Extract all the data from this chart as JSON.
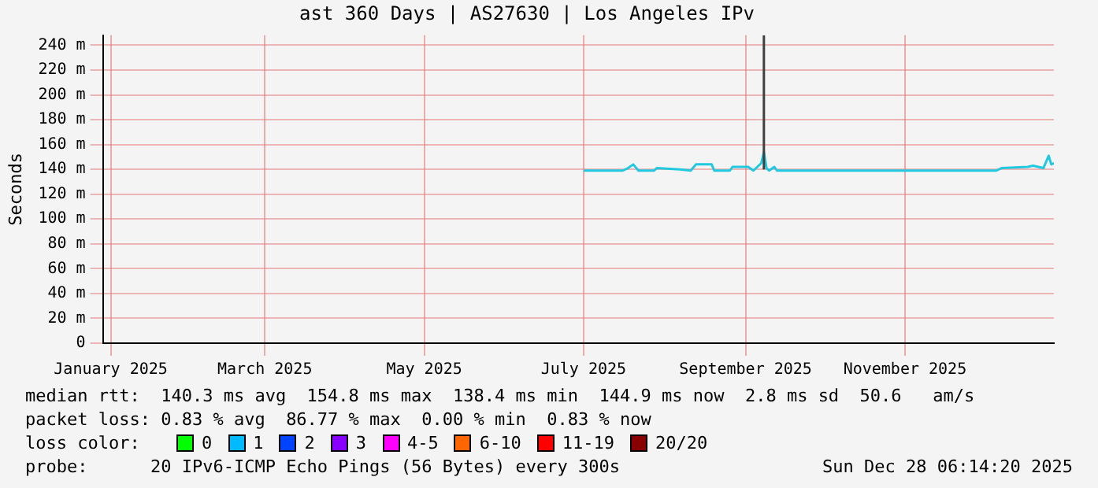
{
  "chart_data": {
    "type": "line",
    "title": "ast 360 Days | AS27630 | Los Angeles IPv",
    "ylabel": "Seconds",
    "grid": true,
    "legend": false,
    "marker": "none",
    "line_style": "solid",
    "xlim": [
      "2024-12-29",
      "2025-12-28"
    ],
    "xticks": [
      {
        "value": "2025-01-01",
        "label": "January 2025"
      },
      {
        "value": "2025-03-01",
        "label": "March 2025"
      },
      {
        "value": "2025-05-01",
        "label": "May 2025"
      },
      {
        "value": "2025-07-01",
        "label": "July 2025"
      },
      {
        "value": "2025-09-01",
        "label": "September 2025"
      },
      {
        "value": "2025-11-01",
        "label": "November 2025"
      }
    ],
    "ylim": [
      0,
      248
    ],
    "yticks": [
      0,
      {
        "value": 20,
        "label": "20 m"
      },
      {
        "value": 40,
        "label": "40 m"
      },
      {
        "value": 60,
        "label": "60 m"
      },
      {
        "value": 80,
        "label": "80 m"
      },
      {
        "value": 100,
        "label": "100 m"
      },
      {
        "value": 120,
        "label": "120 m"
      },
      {
        "value": 140,
        "label": "140 m"
      },
      {
        "value": 160,
        "label": "160 m"
      },
      {
        "value": 180,
        "label": "180 m"
      },
      {
        "value": 200,
        "label": "200 m"
      },
      {
        "value": 220,
        "label": "220 m"
      },
      {
        "value": 240,
        "label": "240 m"
      }
    ],
    "series": [
      {
        "color": "#404040",
        "x": [
          "2025-09-08",
          "2025-09-08"
        ],
        "values": [
          140,
          248
        ]
      },
      {
        "color": "#20c8e0",
        "x": [
          "2025-07-01",
          "2025-07-16",
          "2025-07-18",
          "2025-07-20",
          "2025-07-22",
          "2025-07-28",
          "2025-07-29",
          "2025-08-07",
          "2025-08-11",
          "2025-08-13",
          "2025-08-19",
          "2025-08-20",
          "2025-08-26",
          "2025-08-27",
          "2025-09-02",
          "2025-09-04",
          "2025-09-07",
          "2025-09-08",
          "2025-09-09",
          "2025-09-10",
          "2025-09-12",
          "2025-09-13",
          "2025-12-06",
          "2025-12-08",
          "2025-12-18",
          "2025-12-20",
          "2025-12-24",
          "2025-12-26",
          "2025-12-27",
          "2025-12-28"
        ],
        "values": [
          139,
          139,
          141,
          144,
          139,
          139,
          141,
          140,
          139,
          144,
          144,
          139,
          139,
          142,
          142,
          139,
          145,
          154,
          141,
          139,
          142,
          139,
          139,
          141,
          142,
          143,
          141,
          151,
          144,
          145
        ]
      }
    ],
    "annotations": [
      "median rtt:  140.3 ms avg  154.8 ms max  138.4 ms min  144.9 ms now  2.8 ms sd  50.6   am/s",
      "packet loss: 0.83 % avg  86.77 % max  0.00 % min  0.83 % now",
      "loss color:",
      "0",
      "1",
      "2",
      "3",
      "4-5",
      "6-10",
      "11-19",
      "20/20",
      "probe:      20 IPv6-ICMP Echo Pings (56 Bytes) every 300s",
      "Sun Dec 28 06:14:20 2025"
    ]
  }
}
